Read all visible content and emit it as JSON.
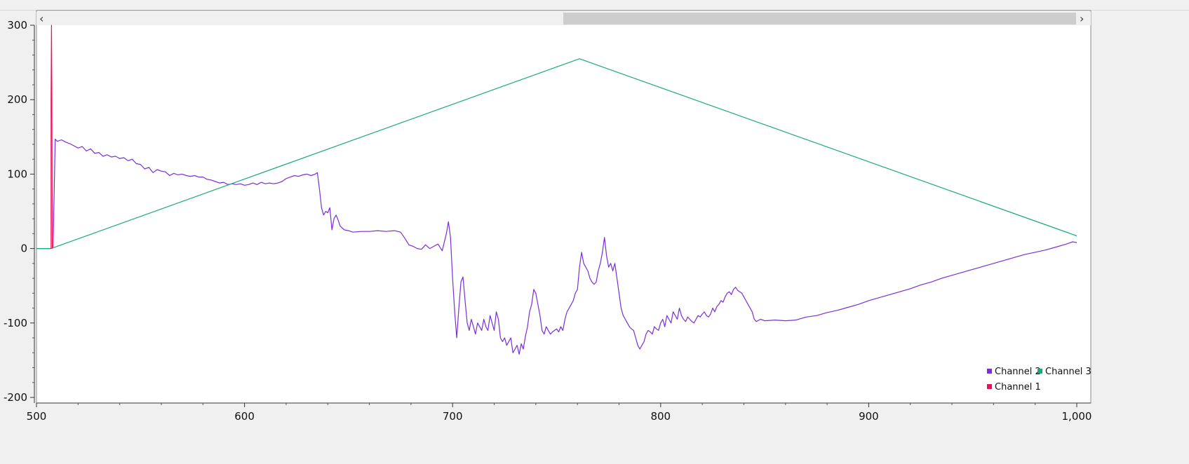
{
  "chart_data": {
    "type": "line",
    "title": "",
    "xlabel": "",
    "ylabel": "",
    "xlim": [
      500,
      1000
    ],
    "ylim": [
      -200,
      300
    ],
    "x_ticks": [
      500,
      600,
      700,
      800,
      900,
      1000
    ],
    "x_tick_labels": [
      "500",
      "600",
      "700",
      "800",
      "900",
      "1,000"
    ],
    "y_ticks": [
      300,
      200,
      100,
      0,
      -100,
      -200
    ],
    "y_tick_labels": [
      "300",
      "200",
      "100",
      "0",
      "-100",
      "-200"
    ],
    "grid": false,
    "legend_position": "bottom-right",
    "legend": [
      {
        "name": "Channel 2",
        "color": "#7b2fd6"
      },
      {
        "name": "Channel 3",
        "color": "#1aaa78"
      },
      {
        "name": "Channel 1",
        "color": "#e8125a"
      }
    ],
    "series": [
      {
        "name": "Channel 2",
        "color": "#7b2fd6",
        "points": [
          [
            500,
            0
          ],
          [
            507,
            0
          ],
          [
            508,
            1
          ],
          [
            509,
            147
          ],
          [
            510,
            144
          ],
          [
            512,
            146
          ],
          [
            514,
            143
          ],
          [
            516,
            141
          ],
          [
            518,
            138
          ],
          [
            520,
            135
          ],
          [
            522,
            137
          ],
          [
            524,
            131
          ],
          [
            526,
            134
          ],
          [
            528,
            128
          ],
          [
            530,
            129
          ],
          [
            532,
            124
          ],
          [
            534,
            126
          ],
          [
            536,
            123
          ],
          [
            538,
            124
          ],
          [
            540,
            121
          ],
          [
            542,
            122
          ],
          [
            544,
            118
          ],
          [
            546,
            120
          ],
          [
            548,
            114
          ],
          [
            550,
            113
          ],
          [
            552,
            107
          ],
          [
            554,
            109
          ],
          [
            556,
            102
          ],
          [
            558,
            106
          ],
          [
            560,
            104
          ],
          [
            562,
            103
          ],
          [
            564,
            98
          ],
          [
            566,
            101
          ],
          [
            568,
            99
          ],
          [
            570,
            100
          ],
          [
            572,
            98
          ],
          [
            574,
            97
          ],
          [
            576,
            98
          ],
          [
            578,
            96
          ],
          [
            580,
            96
          ],
          [
            582,
            93
          ],
          [
            584,
            92
          ],
          [
            586,
            90
          ],
          [
            588,
            88
          ],
          [
            590,
            89
          ],
          [
            592,
            86
          ],
          [
            594,
            87
          ],
          [
            596,
            86
          ],
          [
            598,
            87
          ],
          [
            600,
            85
          ],
          [
            602,
            86
          ],
          [
            604,
            88
          ],
          [
            606,
            86
          ],
          [
            608,
            89
          ],
          [
            610,
            87
          ],
          [
            612,
            88
          ],
          [
            614,
            87
          ],
          [
            616,
            88
          ],
          [
            618,
            90
          ],
          [
            620,
            94
          ],
          [
            622,
            96
          ],
          [
            624,
            98
          ],
          [
            626,
            97
          ],
          [
            628,
            99
          ],
          [
            630,
            100
          ],
          [
            632,
            98
          ],
          [
            634,
            100
          ],
          [
            635,
            102
          ],
          [
            636,
            80
          ],
          [
            637,
            55
          ],
          [
            638,
            45
          ],
          [
            639,
            50
          ],
          [
            640,
            48
          ],
          [
            641,
            55
          ],
          [
            642,
            25
          ],
          [
            643,
            40
          ],
          [
            644,
            45
          ],
          [
            645,
            38
          ],
          [
            646,
            30
          ],
          [
            648,
            25
          ],
          [
            650,
            24
          ],
          [
            652,
            22
          ],
          [
            656,
            23
          ],
          [
            660,
            23
          ],
          [
            664,
            24
          ],
          [
            668,
            23
          ],
          [
            672,
            24
          ],
          [
            675,
            22
          ],
          [
            677,
            14
          ],
          [
            679,
            5
          ],
          [
            681,
            3
          ],
          [
            683,
            0
          ],
          [
            685,
            -1
          ],
          [
            687,
            5
          ],
          [
            689,
            0
          ],
          [
            691,
            3
          ],
          [
            693,
            6
          ],
          [
            695,
            -3
          ],
          [
            697,
            20
          ],
          [
            698,
            36
          ],
          [
            699,
            15
          ],
          [
            700,
            -40
          ],
          [
            701,
            -85
          ],
          [
            702,
            -120
          ],
          [
            703,
            -80
          ],
          [
            704,
            -45
          ],
          [
            705,
            -38
          ],
          [
            706,
            -70
          ],
          [
            707,
            -100
          ],
          [
            708,
            -110
          ],
          [
            709,
            -95
          ],
          [
            710,
            -105
          ],
          [
            711,
            -115
          ],
          [
            712,
            -100
          ],
          [
            713,
            -105
          ],
          [
            714,
            -110
          ],
          [
            715,
            -95
          ],
          [
            716,
            -105
          ],
          [
            717,
            -110
          ],
          [
            718,
            -90
          ],
          [
            719,
            -100
          ],
          [
            720,
            -110
          ],
          [
            721,
            -85
          ],
          [
            722,
            -95
          ],
          [
            723,
            -120
          ],
          [
            724,
            -125
          ],
          [
            725,
            -120
          ],
          [
            726,
            -130
          ],
          [
            727,
            -125
          ],
          [
            728,
            -120
          ],
          [
            729,
            -140
          ],
          [
            730,
            -135
          ],
          [
            731,
            -130
          ],
          [
            732,
            -142
          ],
          [
            733,
            -128
          ],
          [
            734,
            -135
          ],
          [
            735,
            -118
          ],
          [
            736,
            -105
          ],
          [
            737,
            -85
          ],
          [
            738,
            -75
          ],
          [
            739,
            -55
          ],
          [
            740,
            -60
          ],
          [
            741,
            -75
          ],
          [
            742,
            -90
          ],
          [
            743,
            -110
          ],
          [
            744,
            -115
          ],
          [
            745,
            -105
          ],
          [
            746,
            -110
          ],
          [
            747,
            -115
          ],
          [
            748,
            -112
          ],
          [
            749,
            -110
          ],
          [
            750,
            -108
          ],
          [
            751,
            -112
          ],
          [
            752,
            -105
          ],
          [
            753,
            -110
          ],
          [
            754,
            -95
          ],
          [
            755,
            -85
          ],
          [
            756,
            -80
          ],
          [
            757,
            -75
          ],
          [
            758,
            -70
          ],
          [
            759,
            -60
          ],
          [
            760,
            -55
          ],
          [
            761,
            -25
          ],
          [
            762,
            -5
          ],
          [
            763,
            -20
          ],
          [
            764,
            -25
          ],
          [
            765,
            -30
          ],
          [
            766,
            -40
          ],
          [
            767,
            -45
          ],
          [
            768,
            -48
          ],
          [
            769,
            -45
          ],
          [
            770,
            -30
          ],
          [
            771,
            -20
          ],
          [
            772,
            -5
          ],
          [
            773,
            15
          ],
          [
            774,
            -10
          ],
          [
            775,
            -25
          ],
          [
            776,
            -20
          ],
          [
            777,
            -30
          ],
          [
            778,
            -20
          ],
          [
            779,
            -40
          ],
          [
            780,
            -60
          ],
          [
            781,
            -80
          ],
          [
            782,
            -90
          ],
          [
            783,
            -95
          ],
          [
            784,
            -100
          ],
          [
            785,
            -105
          ],
          [
            786,
            -108
          ],
          [
            787,
            -110
          ],
          [
            788,
            -120
          ],
          [
            789,
            -130
          ],
          [
            790,
            -135
          ],
          [
            791,
            -130
          ],
          [
            792,
            -125
          ],
          [
            793,
            -115
          ],
          [
            794,
            -110
          ],
          [
            795,
            -112
          ],
          [
            796,
            -115
          ],
          [
            797,
            -105
          ],
          [
            798,
            -108
          ],
          [
            799,
            -110
          ],
          [
            800,
            -100
          ],
          [
            801,
            -95
          ],
          [
            802,
            -105
          ],
          [
            803,
            -90
          ],
          [
            804,
            -95
          ],
          [
            805,
            -100
          ],
          [
            806,
            -85
          ],
          [
            807,
            -90
          ],
          [
            808,
            -95
          ],
          [
            809,
            -80
          ],
          [
            810,
            -90
          ],
          [
            811,
            -95
          ],
          [
            812,
            -98
          ],
          [
            813,
            -92
          ],
          [
            814,
            -95
          ],
          [
            815,
            -98
          ],
          [
            816,
            -100
          ],
          [
            817,
            -95
          ],
          [
            818,
            -90
          ],
          [
            819,
            -92
          ],
          [
            820,
            -88
          ],
          [
            821,
            -85
          ],
          [
            822,
            -90
          ],
          [
            823,
            -92
          ],
          [
            824,
            -88
          ],
          [
            825,
            -80
          ],
          [
            826,
            -85
          ],
          [
            827,
            -78
          ],
          [
            828,
            -75
          ],
          [
            829,
            -70
          ],
          [
            830,
            -72
          ],
          [
            831,
            -65
          ],
          [
            832,
            -60
          ],
          [
            833,
            -58
          ],
          [
            834,
            -62
          ],
          [
            835,
            -55
          ],
          [
            836,
            -52
          ],
          [
            837,
            -56
          ],
          [
            838,
            -58
          ],
          [
            839,
            -60
          ],
          [
            840,
            -65
          ],
          [
            841,
            -70
          ],
          [
            842,
            -75
          ],
          [
            843,
            -80
          ],
          [
            844,
            -85
          ],
          [
            845,
            -95
          ],
          [
            846,
            -98
          ],
          [
            848,
            -95
          ],
          [
            850,
            -97
          ],
          [
            855,
            -96
          ],
          [
            860,
            -97
          ],
          [
            865,
            -96
          ],
          [
            870,
            -92
          ],
          [
            875,
            -90
          ],
          [
            880,
            -86
          ],
          [
            885,
            -83
          ],
          [
            890,
            -79
          ],
          [
            895,
            -75
          ],
          [
            900,
            -70
          ],
          [
            905,
            -66
          ],
          [
            910,
            -62
          ],
          [
            915,
            -58
          ],
          [
            920,
            -54
          ],
          [
            925,
            -49
          ],
          [
            930,
            -45
          ],
          [
            935,
            -40
          ],
          [
            940,
            -36
          ],
          [
            945,
            -32
          ],
          [
            950,
            -28
          ],
          [
            955,
            -24
          ],
          [
            960,
            -20
          ],
          [
            965,
            -16
          ],
          [
            970,
            -12
          ],
          [
            975,
            -8
          ],
          [
            980,
            -5
          ],
          [
            985,
            -2
          ],
          [
            990,
            2
          ],
          [
            995,
            6
          ],
          [
            998,
            9
          ],
          [
            1000,
            8
          ]
        ]
      },
      {
        "name": "Channel 3",
        "color": "#1aaa78",
        "points": [
          [
            500,
            0
          ],
          [
            507,
            0
          ],
          [
            761,
            255
          ],
          [
            1000,
            17
          ]
        ]
      },
      {
        "name": "Channel 1",
        "color": "#e8125a",
        "points": [
          [
            507,
            0
          ],
          [
            507,
            200
          ],
          [
            507.2,
            300
          ],
          [
            507.4,
            220
          ],
          [
            507.6,
            0
          ]
        ]
      }
    ]
  }
}
